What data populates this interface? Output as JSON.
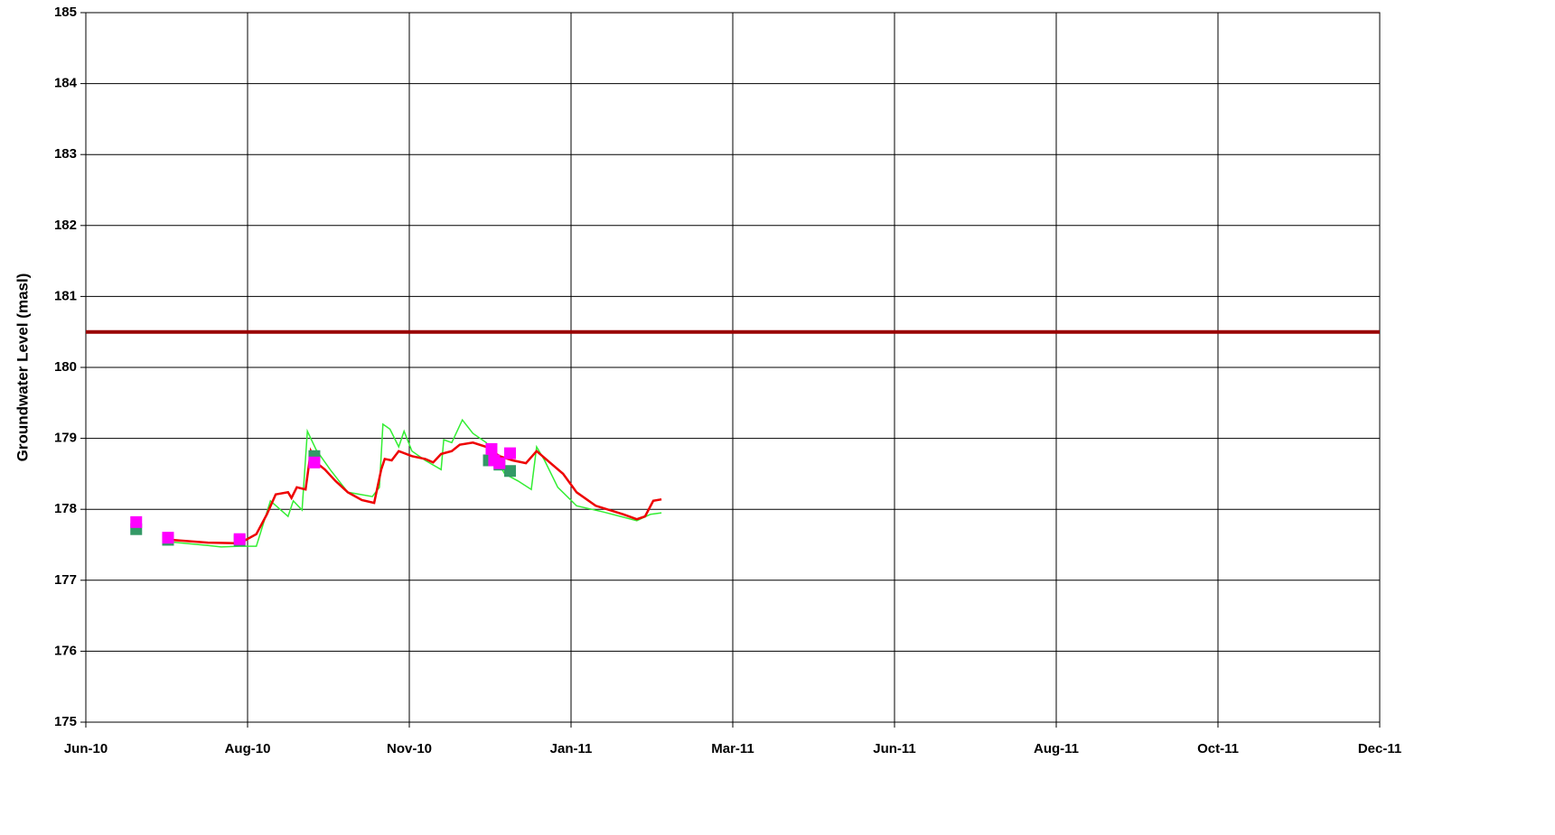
{
  "chart_data": {
    "type": "line",
    "y_label": "Groundwater Level (masl)",
    "xlim": [
      "2010-06-01",
      "2011-12-01"
    ],
    "xticks": [
      {
        "value": "2010-06-01",
        "label": "Jun-10"
      },
      {
        "value": "2010-08-01",
        "label": "Aug-10"
      },
      {
        "value": "2010-11-01",
        "label": "Nov-10"
      },
      {
        "value": "2011-01-01",
        "label": "Jan-11"
      },
      {
        "value": "2011-03-01",
        "label": "Mar-11"
      },
      {
        "value": "2011-06-01",
        "label": "Jun-11"
      },
      {
        "value": "2011-08-01",
        "label": "Aug-11"
      },
      {
        "value": "2011-10-01",
        "label": "Oct-11"
      },
      {
        "value": "2011-12-01",
        "label": "Dec-11"
      }
    ],
    "ylim": [
      175,
      185
    ],
    "yticks": [
      175,
      176,
      177,
      178,
      179,
      180,
      181,
      182,
      183,
      184,
      185
    ],
    "grid": true,
    "reference_lines": [
      {
        "y": 180.5,
        "color": "#990000"
      }
    ],
    "series": [
      {
        "type": "line",
        "color": "#33ee33",
        "x": [
          "2010-07-03",
          "2010-07-17",
          "2010-07-22",
          "2010-07-29",
          "2010-08-06",
          "2010-08-14",
          "2010-08-24",
          "2010-08-27",
          "2010-09-01",
          "2010-09-04",
          "2010-09-09",
          "2010-09-17",
          "2010-09-27",
          "2010-10-11",
          "2010-10-15",
          "2010-10-17",
          "2010-10-21",
          "2010-10-26",
          "2010-10-29",
          "2010-11-02",
          "2010-11-07",
          "2010-11-13",
          "2010-11-14",
          "2010-11-17",
          "2010-11-21",
          "2010-11-25",
          "2010-11-30",
          "2010-12-07",
          "2010-12-12",
          "2010-12-17",
          "2010-12-19",
          "2010-12-22",
          "2010-12-27",
          "2011-01-03",
          "2011-01-13",
          "2011-01-25",
          "2011-01-30",
          "2011-02-03"
        ],
        "values": [
          177.54,
          177.49,
          177.47,
          177.48,
          177.48,
          178.12,
          177.9,
          178.12,
          177.99,
          179.1,
          178.84,
          178.56,
          178.24,
          178.18,
          178.31,
          179.2,
          179.13,
          178.88,
          179.1,
          178.82,
          178.69,
          178.56,
          178.98,
          178.94,
          179.26,
          179.07,
          178.94,
          178.5,
          178.4,
          178.28,
          178.88,
          178.69,
          178.31,
          178.05,
          177.96,
          177.84,
          177.93,
          177.95
        ]
      },
      {
        "type": "line",
        "color": "#ee0000",
        "x": [
          "2010-07-03",
          "2010-07-17",
          "2010-07-29",
          "2010-08-06",
          "2010-08-12",
          "2010-08-17",
          "2010-08-24",
          "2010-08-26",
          "2010-08-29",
          "2010-09-03",
          "2010-09-06",
          "2010-09-09",
          "2010-09-14",
          "2010-09-20",
          "2010-09-27",
          "2010-10-05",
          "2010-10-12",
          "2010-10-16",
          "2010-10-18",
          "2010-10-22",
          "2010-10-26",
          "2010-11-02",
          "2010-11-07",
          "2010-11-10",
          "2010-11-13",
          "2010-11-17",
          "2010-11-20",
          "2010-11-25",
          "2010-11-30",
          "2010-12-05",
          "2010-12-10",
          "2010-12-15",
          "2010-12-19",
          "2010-12-24",
          "2010-12-29",
          "2011-01-03",
          "2011-01-10",
          "2011-01-20",
          "2011-01-25",
          "2011-01-28",
          "2011-01-31",
          "2011-02-03"
        ],
        "values": [
          177.57,
          177.53,
          177.52,
          177.65,
          177.93,
          178.21,
          178.24,
          178.16,
          178.31,
          178.28,
          178.82,
          178.66,
          178.56,
          178.4,
          178.24,
          178.13,
          178.09,
          178.56,
          178.71,
          178.69,
          178.82,
          178.75,
          178.71,
          178.66,
          178.78,
          178.82,
          178.91,
          178.94,
          178.88,
          178.75,
          178.69,
          178.65,
          178.82,
          178.66,
          178.5,
          178.24,
          178.05,
          177.93,
          177.86,
          177.9,
          178.12,
          178.14
        ]
      },
      {
        "type": "scatter",
        "color": "#339966",
        "x": [
          "2010-06-20",
          "2010-07-02",
          "2010-07-29",
          "2010-09-08",
          "2010-12-01",
          "2010-12-05",
          "2010-12-09"
        ],
        "values": [
          177.72,
          177.57,
          177.56,
          178.75,
          178.69,
          178.63,
          178.54
        ]
      },
      {
        "type": "scatter",
        "color": "#ff00ff",
        "x": [
          "2010-06-20",
          "2010-07-02",
          "2010-07-29",
          "2010-09-08",
          "2010-12-02",
          "2010-12-03",
          "2010-12-05",
          "2010-12-09"
        ],
        "values": [
          177.82,
          177.6,
          177.58,
          178.66,
          178.85,
          178.69,
          178.65,
          178.79
        ]
      }
    ]
  }
}
